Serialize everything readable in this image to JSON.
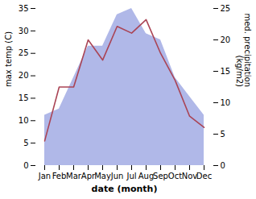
{
  "chart_data": {
    "type": "line",
    "categories": [
      "Jan",
      "Feb",
      "Mar",
      "Apr",
      "May",
      "Jun",
      "Jul",
      "Aug",
      "Sep",
      "Oct",
      "Nov",
      "Dec"
    ],
    "xlabel": "date (month)",
    "ylabel": "max temp (C)",
    "y2label": "med. precipitation\n(kg/m2)",
    "ylim": [
      0,
      35
    ],
    "yticks": [
      0,
      5,
      10,
      15,
      20,
      25,
      30,
      35
    ],
    "y2lim": [
      0,
      25
    ],
    "y2ticks": [
      0,
      5,
      10,
      15,
      20,
      25
    ],
    "series": [
      {
        "type": "area",
        "axis": "y2",
        "color": "#b0b8e8",
        "values": [
          8,
          9,
          14,
          19,
          19,
          24,
          25,
          21,
          20,
          14,
          11,
          8
        ]
      },
      {
        "type": "line",
        "color": "#aa4455",
        "values": [
          5.5,
          17.5,
          17.5,
          28.0,
          23.5,
          31.0,
          29.5,
          32.5,
          25.0,
          19.0,
          11.0,
          8.5
        ]
      }
    ]
  }
}
